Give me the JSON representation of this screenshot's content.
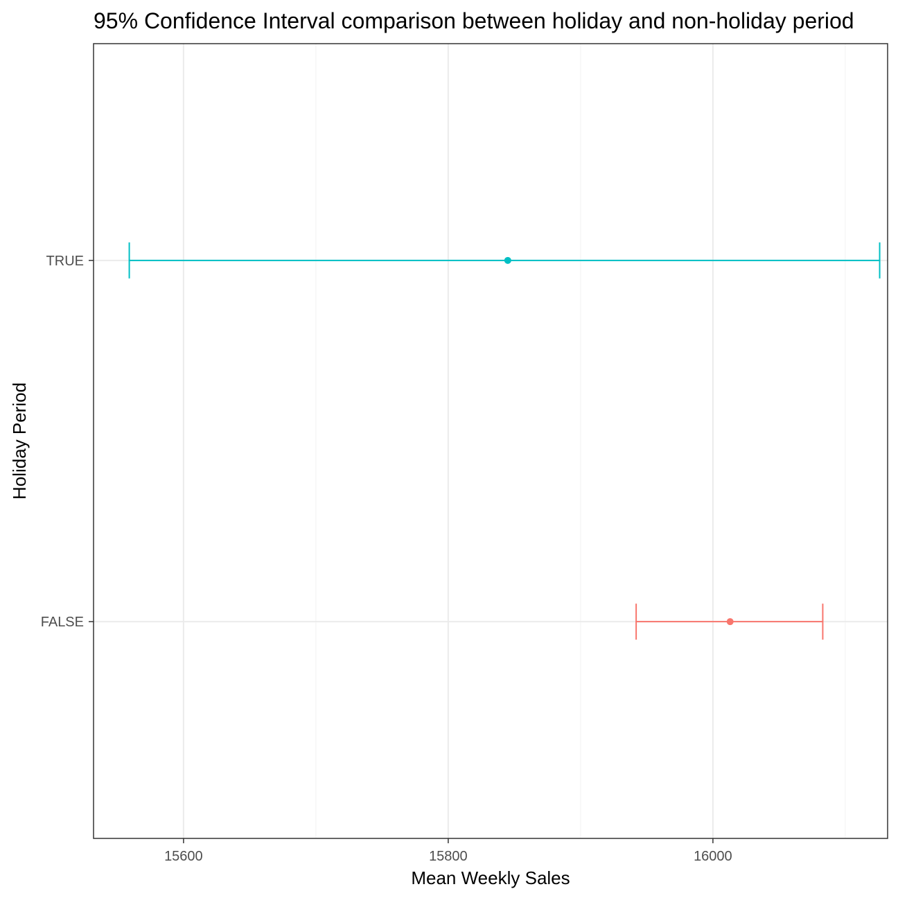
{
  "chart_data": {
    "type": "errorbar",
    "title": "95% Confidence Interval comparison between holiday and non-holiday period",
    "xlabel": "Mean Weekly Sales",
    "ylabel": "Holiday Period",
    "xlim": [
      15532,
      16132
    ],
    "x_ticks": [
      15600,
      15800,
      16000
    ],
    "y_categories": [
      "FALSE",
      "TRUE"
    ],
    "grid": true,
    "legend": "none",
    "series": [
      {
        "category": "TRUE",
        "mean": 15845,
        "lower": 15559,
        "upper": 16126,
        "color": "#00bfc4"
      },
      {
        "category": "FALSE",
        "mean": 16013,
        "lower": 15942,
        "upper": 16083,
        "color": "#f8766d"
      }
    ]
  }
}
